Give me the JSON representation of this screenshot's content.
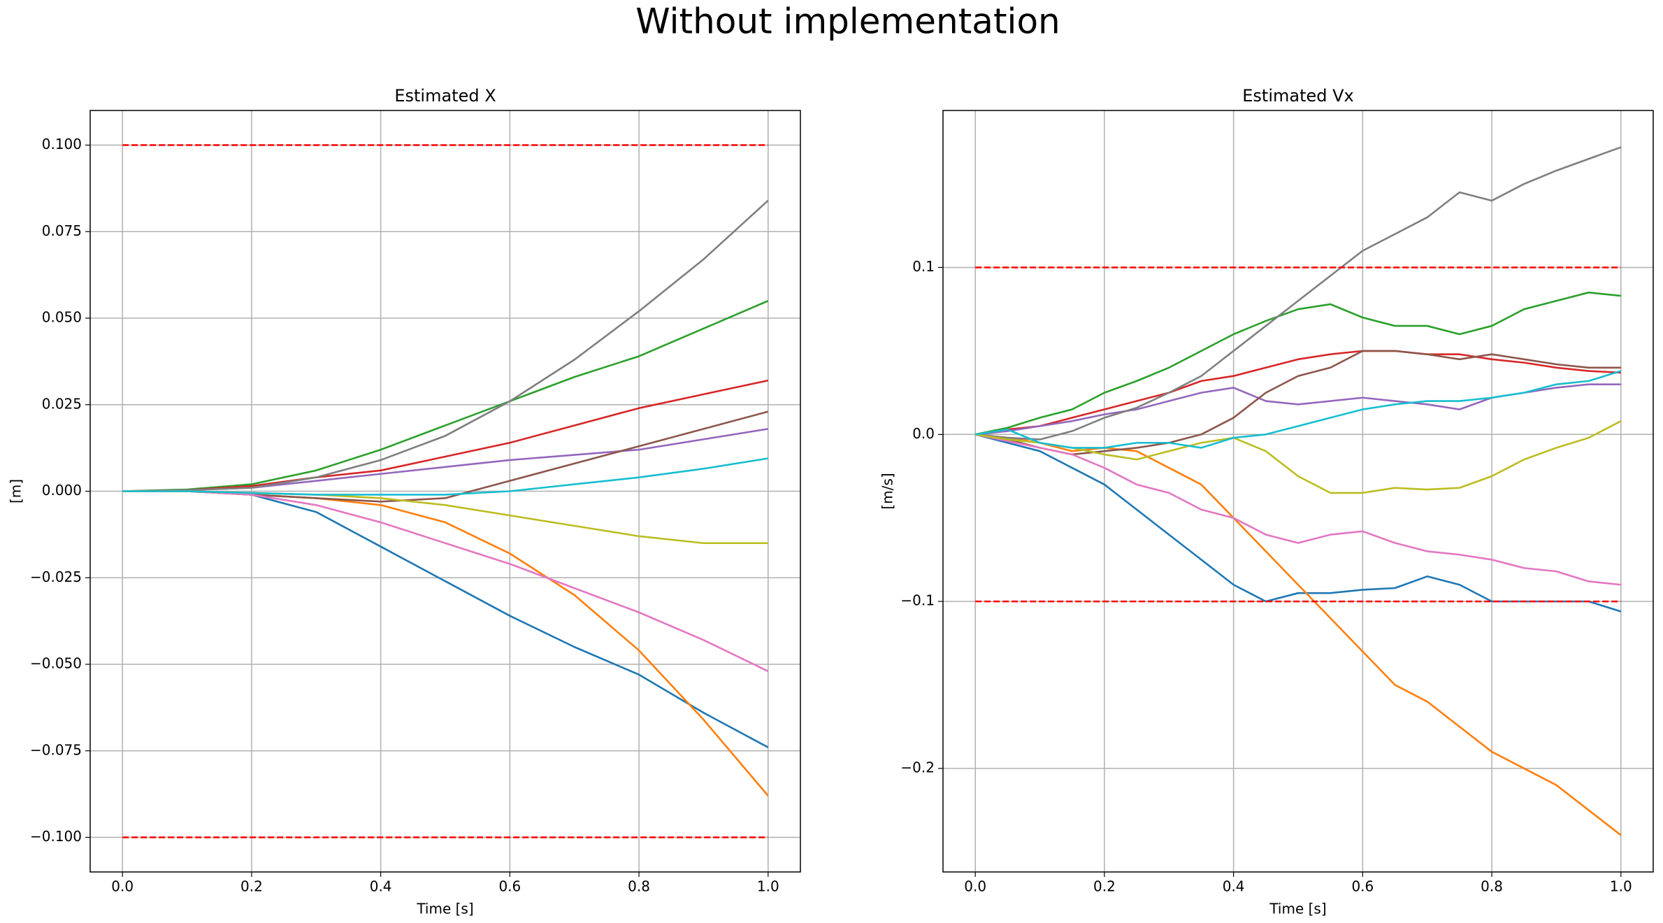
{
  "title": "Without implementation",
  "chart_data": [
    {
      "type": "line",
      "title": "Estimated X",
      "xlabel": "Time [s]",
      "ylabel": "[m]",
      "grid": true,
      "xlim": [
        -0.05,
        1.05
      ],
      "ylim": [
        -0.11,
        0.11
      ],
      "xticks": [
        {
          "value": 0,
          "label": "0.0"
        },
        {
          "value": 0.2,
          "label": "0.2"
        },
        {
          "value": 0.4,
          "label": "0.4"
        },
        {
          "value": 0.6,
          "label": "0.6"
        },
        {
          "value": 0.8,
          "label": "0.8"
        },
        {
          "value": 1,
          "label": "1.0"
        }
      ],
      "yticks": [
        {
          "value": -0.1,
          "label": "−0.100"
        },
        {
          "value": -0.075,
          "label": "−0.075"
        },
        {
          "value": -0.05,
          "label": "−0.050"
        },
        {
          "value": -0.025,
          "label": "−0.025"
        },
        {
          "value": 0,
          "label": "0.000"
        },
        {
          "value": 0.025,
          "label": "0.025"
        },
        {
          "value": 0.05,
          "label": "0.050"
        },
        {
          "value": 0.075,
          "label": "0.075"
        },
        {
          "value": 0.1,
          "label": "0.100"
        }
      ],
      "x": [
        0,
        0.1,
        0.2,
        0.3,
        0.4,
        0.5,
        0.6,
        0.7,
        0.8,
        0.9,
        1.0
      ],
      "series": [
        {
          "color": "#1f77b4",
          "values": [
            0,
            0,
            -0.001,
            -0.006,
            -0.016,
            -0.026,
            -0.036,
            -0.045,
            -0.053,
            -0.064,
            -0.074
          ]
        },
        {
          "color": "#ff7f0e",
          "values": [
            0,
            0,
            -0.001,
            -0.002,
            -0.004,
            -0.009,
            -0.018,
            -0.03,
            -0.046,
            -0.066,
            -0.088
          ]
        },
        {
          "color": "#2ca02c",
          "values": [
            0,
            0.0005,
            0.002,
            0.006,
            0.012,
            0.019,
            0.026,
            0.033,
            0.039,
            0.047,
            0.055
          ]
        },
        {
          "color": "#d62728",
          "values": [
            0,
            0.0003,
            0.0015,
            0.004,
            0.006,
            0.01,
            0.014,
            0.019,
            0.024,
            0.028,
            0.032
          ]
        },
        {
          "color": "#9467bd",
          "values": [
            0,
            0.0003,
            0.001,
            0.003,
            0.005,
            0.007,
            0.009,
            0.0105,
            0.012,
            0.015,
            0.018
          ]
        },
        {
          "color": "#8c564b",
          "values": [
            0,
            0,
            -0.001,
            -0.002,
            -0.003,
            -0.002,
            0.003,
            0.008,
            0.013,
            0.018,
            0.023
          ]
        },
        {
          "color": "#e377c2",
          "values": [
            0,
            0,
            -0.001,
            -0.004,
            -0.009,
            -0.015,
            -0.021,
            -0.028,
            -0.035,
            -0.043,
            -0.052
          ]
        },
        {
          "color": "#7f7f7f",
          "values": [
            0,
            0.0003,
            0.001,
            0.004,
            0.009,
            0.016,
            0.026,
            0.038,
            0.052,
            0.067,
            0.084
          ]
        },
        {
          "color": "#bcbd22",
          "values": [
            0,
            0,
            -0.0005,
            -0.001,
            -0.002,
            -0.004,
            -0.007,
            -0.01,
            -0.013,
            -0.015,
            -0.015
          ]
        },
        {
          "color": "#17becf",
          "values": [
            0,
            0,
            -0.0005,
            -0.001,
            -0.001,
            -0.001,
            0,
            0.002,
            0.004,
            0.0065,
            0.0095
          ]
        },
        {
          "color": "#ff0000",
          "linestyle": "dashed",
          "values": [
            0.1,
            0.1,
            0.1,
            0.1,
            0.1,
            0.1,
            0.1,
            0.1,
            0.1,
            0.1,
            0.1
          ]
        },
        {
          "color": "#ff0000",
          "linestyle": "dashed",
          "values": [
            -0.1,
            -0.1,
            -0.1,
            -0.1,
            -0.1,
            -0.1,
            -0.1,
            -0.1,
            -0.1,
            -0.1,
            -0.1
          ]
        }
      ]
    },
    {
      "type": "line",
      "title": "Estimated Vx",
      "xlabel": "Time [s]",
      "ylabel": "[m/s]",
      "grid": true,
      "xlim": [
        -0.05,
        1.05
      ],
      "ylim": [
        -0.262,
        0.194
      ],
      "xticks": [
        {
          "value": 0,
          "label": "0.0"
        },
        {
          "value": 0.2,
          "label": "0.2"
        },
        {
          "value": 0.4,
          "label": "0.4"
        },
        {
          "value": 0.6,
          "label": "0.6"
        },
        {
          "value": 0.8,
          "label": "0.8"
        },
        {
          "value": 1,
          "label": "1.0"
        }
      ],
      "yticks": [
        {
          "value": -0.2,
          "label": "−0.2"
        },
        {
          "value": -0.1,
          "label": "−0.1"
        },
        {
          "value": 0,
          "label": "0.0"
        },
        {
          "value": 0.1,
          "label": "0.1"
        }
      ],
      "x": [
        0,
        0.05,
        0.1,
        0.15,
        0.2,
        0.25,
        0.3,
        0.35,
        0.4,
        0.45,
        0.5,
        0.55,
        0.6,
        0.65,
        0.7,
        0.75,
        0.8,
        0.85,
        0.9,
        0.95,
        1.0
      ],
      "series": [
        {
          "color": "#1f77b4",
          "values": [
            0,
            -0.005,
            -0.01,
            -0.02,
            -0.03,
            -0.045,
            -0.06,
            -0.075,
            -0.09,
            -0.1,
            -0.095,
            -0.095,
            -0.093,
            -0.092,
            -0.085,
            -0.09,
            -0.1,
            -0.1,
            -0.1,
            -0.1,
            -0.106
          ]
        },
        {
          "color": "#ff7f0e",
          "values": [
            0,
            -0.002,
            -0.005,
            -0.01,
            -0.008,
            -0.01,
            -0.02,
            -0.03,
            -0.05,
            -0.07,
            -0.09,
            -0.11,
            -0.13,
            -0.15,
            -0.16,
            -0.175,
            -0.19,
            -0.2,
            -0.21,
            -0.225,
            -0.24
          ]
        },
        {
          "color": "#2ca02c",
          "values": [
            0,
            0.004,
            0.01,
            0.015,
            0.025,
            0.032,
            0.04,
            0.05,
            0.06,
            0.068,
            0.075,
            0.078,
            0.07,
            0.065,
            0.065,
            0.06,
            0.065,
            0.075,
            0.08,
            0.085,
            0.083
          ]
        },
        {
          "color": "#d62728",
          "values": [
            0,
            0.003,
            0.005,
            0.01,
            0.015,
            0.02,
            0.025,
            0.032,
            0.035,
            0.04,
            0.045,
            0.048,
            0.05,
            0.05,
            0.048,
            0.048,
            0.045,
            0.043,
            0.04,
            0.038,
            0.037
          ]
        },
        {
          "color": "#9467bd",
          "values": [
            0,
            0.002,
            0.005,
            0.008,
            0.012,
            0.015,
            0.02,
            0.025,
            0.028,
            0.02,
            0.018,
            0.02,
            0.022,
            0.02,
            0.018,
            0.015,
            0.022,
            0.025,
            0.028,
            0.03,
            0.03
          ]
        },
        {
          "color": "#8c564b",
          "values": [
            0,
            -0.003,
            -0.008,
            -0.012,
            -0.01,
            -0.008,
            -0.005,
            0,
            0.01,
            0.025,
            0.035,
            0.04,
            0.05,
            0.05,
            0.048,
            0.045,
            0.048,
            0.045,
            0.042,
            0.04,
            0.04
          ]
        },
        {
          "color": "#e377c2",
          "values": [
            0,
            -0.004,
            -0.008,
            -0.012,
            -0.02,
            -0.03,
            -0.035,
            -0.045,
            -0.05,
            -0.06,
            -0.065,
            -0.06,
            -0.058,
            -0.065,
            -0.07,
            -0.072,
            -0.075,
            -0.08,
            -0.082,
            -0.088,
            -0.09
          ]
        },
        {
          "color": "#7f7f7f",
          "values": [
            0,
            -0.002,
            -0.003,
            0.002,
            0.01,
            0.016,
            0.025,
            0.035,
            0.05,
            0.065,
            0.08,
            0.095,
            0.11,
            0.12,
            0.13,
            0.145,
            0.14,
            0.15,
            0.158,
            0.165,
            0.172
          ]
        },
        {
          "color": "#bcbd22",
          "values": [
            0,
            -0.003,
            -0.005,
            -0.008,
            -0.012,
            -0.015,
            -0.01,
            -0.005,
            -0.002,
            -0.01,
            -0.025,
            -0.035,
            -0.035,
            -0.032,
            -0.033,
            -0.032,
            -0.025,
            -0.015,
            -0.008,
            -0.002,
            0.008
          ]
        },
        {
          "color": "#17becf",
          "values": [
            0,
            0.003,
            -0.005,
            -0.008,
            -0.008,
            -0.005,
            -0.005,
            -0.008,
            -0.002,
            0,
            0.005,
            0.01,
            0.015,
            0.018,
            0.02,
            0.02,
            0.022,
            0.025,
            0.03,
            0.032,
            0.038
          ]
        },
        {
          "color": "#ff0000",
          "linestyle": "dashed",
          "values": [
            0.1,
            0.1,
            0.1,
            0.1,
            0.1,
            0.1,
            0.1,
            0.1,
            0.1,
            0.1,
            0.1,
            0.1,
            0.1,
            0.1,
            0.1,
            0.1,
            0.1,
            0.1,
            0.1,
            0.1,
            0.1
          ]
        },
        {
          "color": "#ff0000",
          "linestyle": "dashed",
          "values": [
            -0.1,
            -0.1,
            -0.1,
            -0.1,
            -0.1,
            -0.1,
            -0.1,
            -0.1,
            -0.1,
            -0.1,
            -0.1,
            -0.1,
            -0.1,
            -0.1,
            -0.1,
            -0.1,
            -0.1,
            -0.1,
            -0.1,
            -0.1,
            -0.1
          ]
        }
      ]
    }
  ]
}
